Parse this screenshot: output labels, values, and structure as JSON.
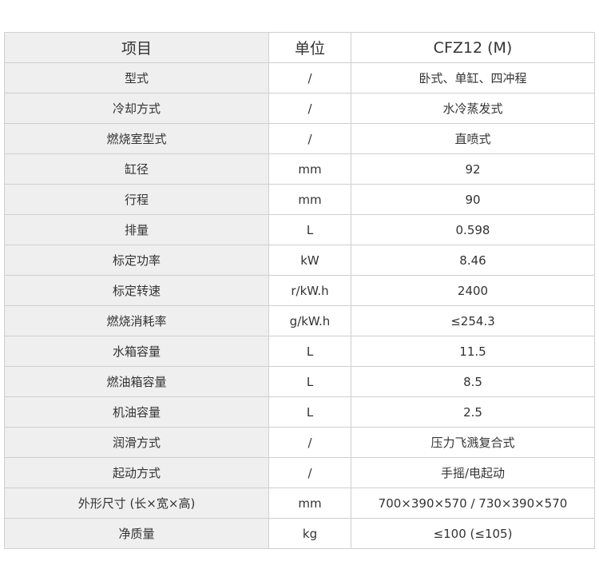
{
  "header": [
    "项目",
    "单位",
    "CFZ12 (M)"
  ],
  "rows": [
    [
      "型式",
      "/",
      "卧式、单缸、四冲程"
    ],
    [
      "冷却方式",
      "/",
      "水冷蒸发式"
    ],
    [
      "燃烧室型式",
      "/",
      "直喷式"
    ],
    [
      "缸径",
      "mm",
      "92"
    ],
    [
      "行程",
      "mm",
      "90"
    ],
    [
      "排量",
      "L",
      "0.598"
    ],
    [
      "标定功率",
      "kW",
      "8.46"
    ],
    [
      "标定转速",
      "r/kW.h",
      "2400"
    ],
    [
      "燃烧消耗率",
      "g/kW.h",
      "≤254.3"
    ],
    [
      "水箱容量",
      "L",
      "11.5"
    ],
    [
      "燃油箱容量",
      "L",
      "8.5"
    ],
    [
      "机油容量",
      "L",
      "2.5"
    ],
    [
      "润滑方式",
      "/",
      "压力飞溅复合式"
    ],
    [
      "起动方式",
      "/",
      "手摇/电起动"
    ],
    [
      "外形尺寸 (长×宽×高)",
      "mm",
      "700×390×570 / 730×390×570"
    ],
    [
      "净质量",
      "kg",
      "≤100 (≤105)"
    ]
  ]
}
